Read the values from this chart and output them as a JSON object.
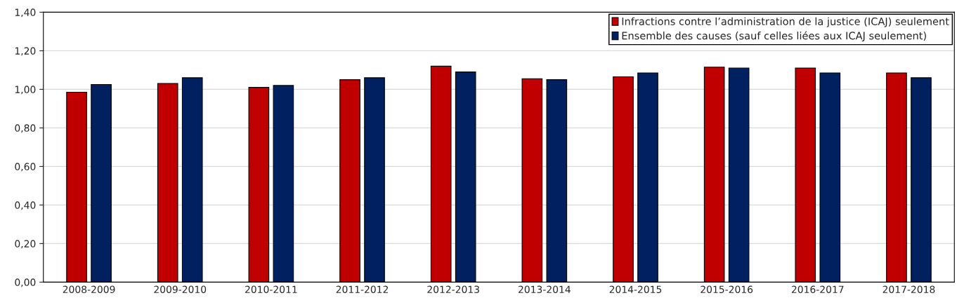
{
  "chart_data": {
    "type": "bar",
    "categories": [
      "2008-2009",
      "2009-2010",
      "2010-2011",
      "2011-2012",
      "2012-2013",
      "2013-2014",
      "2014-2015",
      "2015-2016",
      "2016-2017",
      "2017-2018"
    ],
    "series": [
      {
        "name": "Infractions contre l’administration de la justice (ICAJ) seulement",
        "color": "#c00000",
        "values": [
          0.985,
          1.03,
          1.01,
          1.05,
          1.12,
          1.055,
          1.065,
          1.115,
          1.11,
          1.085
        ]
      },
      {
        "name": "Ensemble des causes (sauf celles liées aux ICAJ seulement)",
        "color": "#002060",
        "values": [
          1.025,
          1.06,
          1.02,
          1.06,
          1.09,
          1.05,
          1.085,
          1.11,
          1.085,
          1.06
        ]
      }
    ],
    "ylim": [
      0,
      1.4
    ],
    "yticks": [
      {
        "value": 0,
        "label": "0,00"
      },
      {
        "value": 0.2,
        "label": "0,20"
      },
      {
        "value": 0.4,
        "label": "0,40"
      },
      {
        "value": 0.6,
        "label": "0,60"
      },
      {
        "value": 0.8,
        "label": "0,80"
      },
      {
        "value": 1.0,
        "label": "1,00"
      },
      {
        "value": 1.2,
        "label": "1,20"
      },
      {
        "value": 1.4,
        "label": "1,40"
      }
    ],
    "grid": "y",
    "legend": "top right"
  }
}
